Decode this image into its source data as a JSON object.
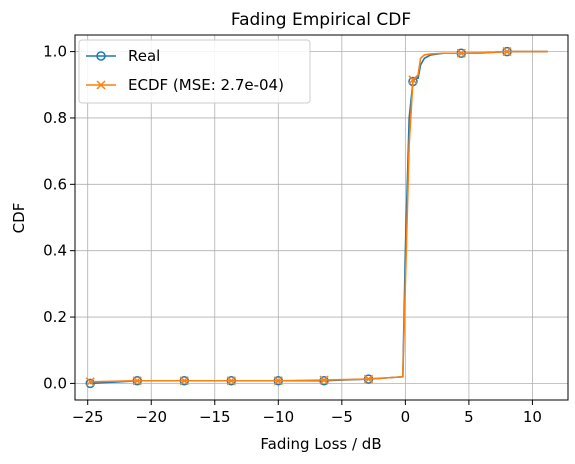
{
  "chart_data": {
    "type": "line",
    "title": "Fading Empirical CDF",
    "xlabel": "Fading Loss / dB",
    "ylabel": "CDF",
    "xlim": [
      -26.0,
      12.8
    ],
    "ylim": [
      -0.05,
      1.05
    ],
    "xticks": [
      -25,
      -20,
      -15,
      -10,
      -5,
      0,
      5,
      10
    ],
    "xtick_labels": [
      "−25",
      "−20",
      "−15",
      "−10",
      "−5",
      "0",
      "5",
      "10"
    ],
    "yticks": [
      0.0,
      0.2,
      0.4,
      0.6,
      0.8,
      1.0
    ],
    "ytick_labels": [
      "0.0",
      "0.2",
      "0.4",
      "0.6",
      "0.8",
      "1.0"
    ],
    "grid": true,
    "legend_position": "upper-left",
    "series": [
      {
        "name": "Real",
        "color": "#1f77b4",
        "marker": "circle-open",
        "x": [
          -24.8,
          -21.1,
          -17.4,
          -13.7,
          -10.0,
          -6.4,
          -2.9,
          -0.2,
          0.0,
          0.3,
          0.6,
          0.8,
          1.0,
          1.2,
          1.5,
          2.0,
          3.0,
          4.4,
          6.0,
          8.0,
          9.5,
          11.2
        ],
        "y": [
          0.0,
          0.008,
          0.008,
          0.008,
          0.008,
          0.008,
          0.013,
          0.02,
          0.4,
          0.8,
          0.91,
          0.92,
          0.92,
          0.96,
          0.98,
          0.99,
          0.995,
          0.995,
          0.996,
          1.0,
          1.0,
          1.0
        ],
        "marker_indices": [
          0,
          1,
          2,
          3,
          4,
          5,
          6,
          10,
          17,
          19
        ]
      },
      {
        "name": "ECDF (MSE: 2.7e-04)",
        "color": "#ff7f0e",
        "marker": "x",
        "x": [
          -24.8,
          -21.1,
          -17.4,
          -13.7,
          -10.0,
          -6.4,
          -2.9,
          -0.2,
          0.0,
          0.3,
          0.6,
          0.8,
          1.0,
          1.2,
          1.5,
          2.0,
          3.0,
          4.4,
          6.0,
          8.0,
          9.5,
          11.2
        ],
        "y": [
          0.005,
          0.008,
          0.008,
          0.008,
          0.008,
          0.01,
          0.013,
          0.02,
          0.3,
          0.72,
          0.915,
          0.92,
          0.93,
          0.98,
          0.99,
          0.993,
          0.995,
          0.995,
          0.996,
          1.0,
          1.0,
          1.0
        ],
        "marker_indices": [
          0,
          1,
          2,
          3,
          4,
          5,
          6,
          10,
          17,
          19
        ]
      }
    ]
  }
}
